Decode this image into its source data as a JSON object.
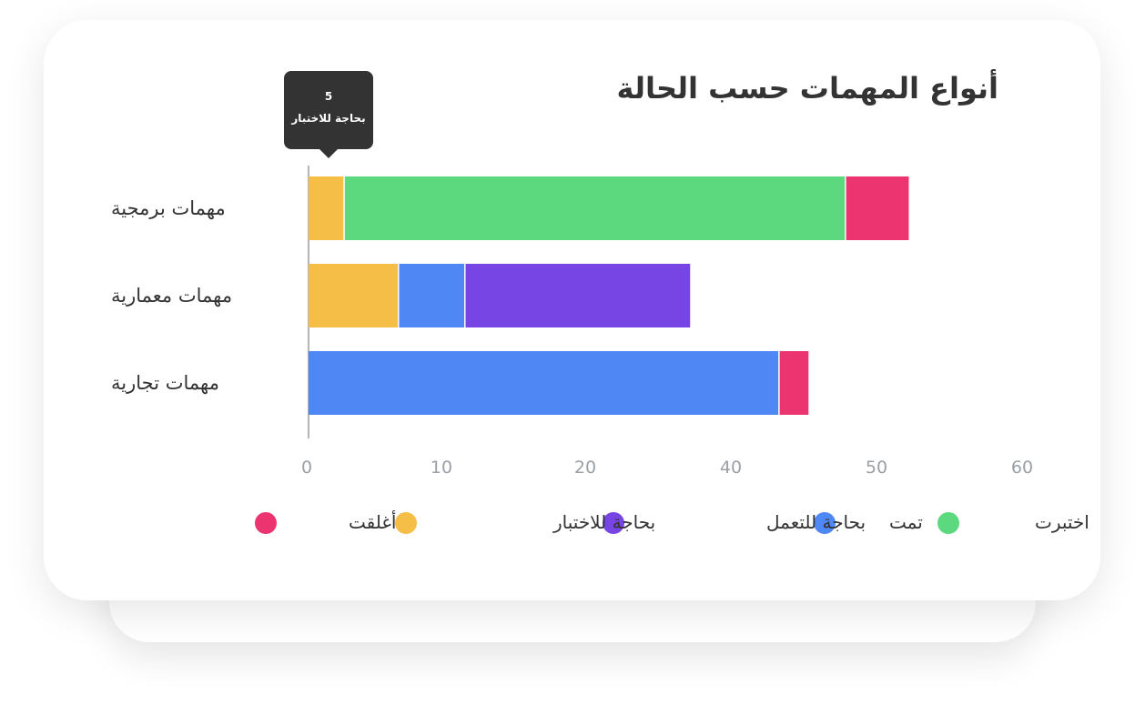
{
  "chart_data": {
    "type": "bar",
    "orientation": "horizontal",
    "stacked": true,
    "title": "أنواع المهمات حسب الحالة",
    "categories": [
      "مهمات برمجية",
      "مهمات معمارية",
      "مهمات تجارية"
    ],
    "series": [
      {
        "name": "بحاجة للاختبار",
        "color": "#f5bf47",
        "values": [
          3,
          7.5,
          0
        ]
      },
      {
        "name": "تمت",
        "color": "#4f87f5",
        "values": [
          0,
          5.5,
          39
        ]
      },
      {
        "name": "بحاجة للتعمل",
        "color": "#7745e3",
        "values": [
          0,
          18.7,
          0
        ]
      },
      {
        "name": "اختبرت",
        "color": "#5cd97e",
        "values": [
          41.5,
          0,
          0
        ]
      },
      {
        "name": "أغلقت",
        "color": "#ec3470",
        "values": [
          5.3,
          0,
          2.5
        ]
      }
    ],
    "legend_order": [
      "اختبرت",
      "تمت",
      "بحاجة للتعمل",
      "بحاجة للاختبار",
      "أغلقت"
    ],
    "xticks": [
      "0",
      "10",
      "20",
      "40",
      "50",
      "60"
    ],
    "xlabel": "",
    "ylabel": "",
    "grid": false,
    "legend_position": "bottom",
    "tooltip": {
      "value": "5",
      "label": "بحاجة للاختبار"
    }
  }
}
